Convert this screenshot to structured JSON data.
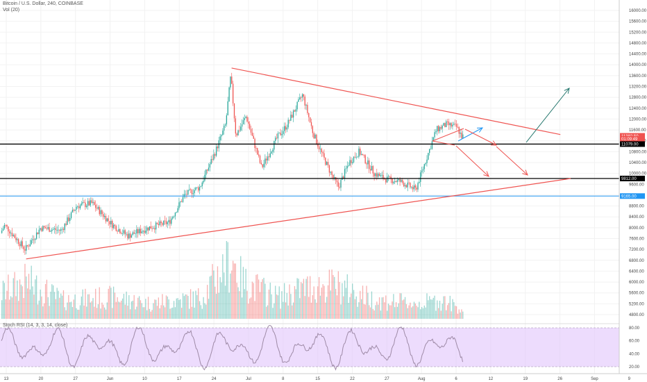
{
  "header": {
    "symbol_line": "Bitcoin / U.S. Dollar, 240, COINBASE",
    "volume_label": "Vol (20)"
  },
  "rsi_panel": {
    "label": "Stoch RSI (14, 3, 3, 14, close)",
    "ticks": [
      "80.00",
      "60.00",
      "40.00",
      "20.00"
    ]
  },
  "price_axis": {
    "ticks": [
      "16000.00",
      "15600.00",
      "15200.00",
      "14800.00",
      "14400.00",
      "14000.00",
      "13600.00",
      "13200.00",
      "12800.00",
      "12400.00",
      "12000.00",
      "11600.00",
      "11200.00",
      "10800.00",
      "10400.00",
      "10000.00",
      "9600.00",
      "9200.00",
      "8800.00",
      "8400.00",
      "8000.00",
      "7600.00",
      "7200.00",
      "6800.00",
      "6400.00",
      "6000.00",
      "5600.00",
      "5200.00",
      "4800.00"
    ],
    "tags": [
      {
        "text": "11382.50",
        "price": 11382.5,
        "color": "#ef5350"
      },
      {
        "text": "01:09:49",
        "price": 11270,
        "color": "#ef5350"
      },
      {
        "text": "11079.00",
        "price": 11079,
        "color": "#000000"
      },
      {
        "text": "9812.00",
        "price": 9812,
        "color": "#000000"
      },
      {
        "text": "9165.00",
        "price": 9165,
        "color": "#2196f3"
      }
    ]
  },
  "time_axis": {
    "labels": [
      "13",
      "20",
      "27",
      "Jun",
      "10",
      "17",
      "24",
      "Jul",
      "8",
      "15",
      "22",
      "27",
      "Aug",
      "6",
      "12",
      "19",
      "26",
      "Sep",
      "9"
    ]
  },
  "levels": [
    {
      "price": 11079,
      "color": "#000000"
    },
    {
      "price": 9812,
      "color": "#000000"
    },
    {
      "price": 9165,
      "color": "#2196f3"
    }
  ],
  "colors": {
    "up": "#26a69a",
    "down": "#ef5350",
    "trendline": "#ef5350",
    "bullish_arrow": "#26776e",
    "rsi_band": "#e1c4fb",
    "rsi_line": "#9e8aa6"
  },
  "chart_data": {
    "type": "candlestick",
    "title": "Bitcoin / U.S. Dollar, 240, COINBASE",
    "y_range": [
      4800,
      16000
    ],
    "trendlines": [
      {
        "from": {
          "date": "2019-05-17",
          "price": 6850
        },
        "to": {
          "date": "2019-08-31",
          "price": 9812
        }
      },
      {
        "from": {
          "date": "2019-06-26",
          "price": 13880
        },
        "to": {
          "date": "2019-08-29",
          "price": 11430
        }
      }
    ],
    "price_path": [
      {
        "date": "2019-05-10",
        "price": 7000
      },
      {
        "date": "2019-05-13",
        "price": 8100
      },
      {
        "date": "2019-05-17",
        "price": 7200
      },
      {
        "date": "2019-05-20",
        "price": 8000
      },
      {
        "date": "2019-05-24",
        "price": 7900
      },
      {
        "date": "2019-05-27",
        "price": 8800
      },
      {
        "date": "2019-05-30",
        "price": 8900
      },
      {
        "date": "2019-06-03",
        "price": 8100
      },
      {
        "date": "2019-06-06",
        "price": 7700
      },
      {
        "date": "2019-06-10",
        "price": 8000
      },
      {
        "date": "2019-06-14",
        "price": 8200
      },
      {
        "date": "2019-06-17",
        "price": 9200
      },
      {
        "date": "2019-06-20",
        "price": 9500
      },
      {
        "date": "2019-06-23",
        "price": 10800
      },
      {
        "date": "2019-06-25",
        "price": 11800
      },
      {
        "date": "2019-06-26",
        "price": 13600
      },
      {
        "date": "2019-06-27",
        "price": 11400
      },
      {
        "date": "2019-06-29",
        "price": 12100
      },
      {
        "date": "2019-07-02",
        "price": 10200
      },
      {
        "date": "2019-07-05",
        "price": 11300
      },
      {
        "date": "2019-07-07",
        "price": 11800
      },
      {
        "date": "2019-07-10",
        "price": 12900
      },
      {
        "date": "2019-07-12",
        "price": 11500
      },
      {
        "date": "2019-07-14",
        "price": 10600
      },
      {
        "date": "2019-07-16",
        "price": 9800
      },
      {
        "date": "2019-07-17",
        "price": 9500
      },
      {
        "date": "2019-07-19",
        "price": 10400
      },
      {
        "date": "2019-07-21",
        "price": 10800
      },
      {
        "date": "2019-07-24",
        "price": 10000
      },
      {
        "date": "2019-07-26",
        "price": 9800
      },
      {
        "date": "2019-07-29",
        "price": 9700
      },
      {
        "date": "2019-08-01",
        "price": 9400
      },
      {
        "date": "2019-08-03",
        "price": 10500
      },
      {
        "date": "2019-08-05",
        "price": 11600
      },
      {
        "date": "2019-08-07",
        "price": 11800
      },
      {
        "date": "2019-08-09",
        "price": 11700
      },
      {
        "date": "2019-08-10",
        "price": 11350
      }
    ],
    "volume_path": [
      {
        "date": "2019-05-10",
        "value": 0.35
      },
      {
        "date": "2019-05-17",
        "value": 0.6
      },
      {
        "date": "2019-05-24",
        "value": 0.3
      },
      {
        "date": "2019-06-03",
        "value": 0.35
      },
      {
        "date": "2019-06-10",
        "value": 0.25
      },
      {
        "date": "2019-06-20",
        "value": 0.35
      },
      {
        "date": "2019-06-26",
        "value": 1.0
      },
      {
        "date": "2019-06-28",
        "value": 0.6
      },
      {
        "date": "2019-07-05",
        "value": 0.35
      },
      {
        "date": "2019-07-10",
        "value": 0.5
      },
      {
        "date": "2019-07-16",
        "value": 0.55
      },
      {
        "date": "2019-07-24",
        "value": 0.3
      },
      {
        "date": "2019-08-01",
        "value": 0.25
      },
      {
        "date": "2019-08-06",
        "value": 0.3
      },
      {
        "date": "2019-08-10",
        "value": 0.15
      }
    ]
  }
}
